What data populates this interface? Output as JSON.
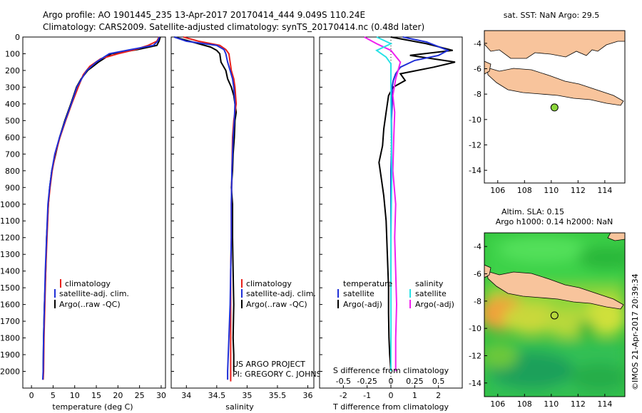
{
  "header": {
    "line1": "Argo profile: AO 1901445_235 13-Apr-2017 20170414_444 9.049S 110.24E",
    "line2": "Climatology: CARS2009. Satellite-adjusted climatology: synTS_20170414.nc (0.48d later)"
  },
  "colors": {
    "climatology": "#e8201a",
    "satellite_clim": "#1f2fd6",
    "argo": "#000000",
    "s_satellite": "#27e2e6",
    "s_argo": "#f020f0",
    "land": "#f8c49c",
    "marker": "#8cd63c"
  },
  "chart_data": [
    {
      "type": "line",
      "xlabel": "temperature (deg C)",
      "xlim": [
        -2,
        31
      ],
      "xticks": [
        "0",
        "5",
        "10",
        "15",
        "20",
        "25",
        "30"
      ],
      "ylim": [
        2100,
        0
      ],
      "yticks": [
        "0",
        "100",
        "200",
        "300",
        "400",
        "500",
        "600",
        "700",
        "800",
        "900",
        "1000",
        "1100",
        "1200",
        "1300",
        "1400",
        "1500",
        "1600",
        "1700",
        "1800",
        "1900",
        "2000"
      ],
      "legend": [
        "climatology",
        "satellite-adj. clim.",
        "Argo(..raw -QC)"
      ],
      "series": [
        {
          "name": "climatology",
          "x": [
            29.5,
            29.0,
            27.0,
            24.0,
            20.0,
            16.0,
            13.5,
            12.0,
            10.8,
            9.3,
            7.9,
            6.6,
            5.5,
            4.8,
            4.3,
            3.9,
            3.6,
            3.3,
            3.1,
            2.9,
            2.8,
            2.7
          ],
          "y": [
            0,
            25,
            50,
            75,
            100,
            130,
            175,
            225,
            300,
            400,
            500,
            600,
            700,
            800,
            900,
            1000,
            1200,
            1400,
            1600,
            1800,
            2000,
            2050
          ]
        },
        {
          "name": "satellite-adj. clim.",
          "x": [
            29.6,
            29.2,
            28.2,
            23.0,
            18.0,
            15.0,
            12.8,
            11.6,
            10.5,
            9.2,
            7.8,
            6.5,
            5.4,
            4.7,
            4.2,
            3.8,
            3.5,
            3.2,
            3.0,
            2.8,
            2.7,
            2.6
          ],
          "y": [
            0,
            25,
            50,
            75,
            100,
            150,
            200,
            250,
            300,
            400,
            500,
            600,
            700,
            800,
            900,
            1000,
            1200,
            1400,
            1600,
            1800,
            2000,
            2050
          ]
        },
        {
          "name": "Argo(..raw -QC)",
          "x": [
            29.8,
            29.5,
            29.0,
            24.5,
            18.5,
            15.5,
            13.0,
            11.5,
            10.4,
            9.1,
            7.7,
            6.5,
            5.6,
            4.7,
            4.2,
            3.9,
            3.5,
            3.3,
            3.0,
            2.8,
            2.7
          ],
          "y": [
            0,
            25,
            50,
            75,
            100,
            150,
            200,
            250,
            300,
            400,
            500,
            600,
            700,
            800,
            900,
            1000,
            1200,
            1400,
            1600,
            1800,
            2000
          ]
        }
      ]
    },
    {
      "type": "line",
      "xlabel": "salinity",
      "xlim": [
        33.75,
        36.1
      ],
      "xticks": [
        "34",
        "34.5",
        "35",
        "35.5",
        "36"
      ],
      "ylim": [
        2100,
        0
      ],
      "legend": [
        "climatology",
        "satellite-adj. clim.",
        "Argo(..raw -QC)"
      ],
      "annotations": [
        "US ARGO PROJECT",
        "PI: GREGORY C. JOHNSON"
      ],
      "series": [
        {
          "name": "climatology",
          "x": [
            33.95,
            34.2,
            34.55,
            34.65,
            34.7,
            34.72,
            34.74,
            34.78,
            34.8,
            34.82,
            34.8,
            34.78,
            34.76,
            34.75,
            34.74,
            34.74,
            34.73,
            34.73,
            34.73,
            34.73,
            34.73,
            34.73
          ],
          "y": [
            0,
            25,
            50,
            75,
            100,
            150,
            200,
            250,
            300,
            400,
            450,
            500,
            600,
            800,
            1000,
            1200,
            1400,
            1600,
            1800,
            2000,
            2050,
            2060
          ]
        },
        {
          "name": "satellite-adj. clim.",
          "x": [
            33.8,
            34.0,
            34.5,
            34.62,
            34.65,
            34.68,
            34.72,
            34.76,
            34.78,
            34.8,
            34.79,
            34.77,
            34.76,
            34.75,
            34.74,
            34.74,
            34.73,
            34.72,
            34.7,
            34.68,
            34.68
          ],
          "y": [
            0,
            25,
            50,
            75,
            100,
            150,
            200,
            250,
            300,
            400,
            500,
            600,
            700,
            800,
            1000,
            1200,
            1400,
            1600,
            1800,
            2000,
            2050
          ]
        },
        {
          "name": "Argo(..raw -QC)",
          "x": [
            33.8,
            34.1,
            34.4,
            34.5,
            34.55,
            34.57,
            34.65,
            34.68,
            34.74,
            34.78,
            34.82,
            34.8,
            34.79,
            34.77,
            34.76,
            34.74,
            34.76,
            34.76,
            34.77,
            34.78,
            34.77,
            34.78,
            34.78
          ],
          "y": [
            0,
            30,
            60,
            80,
            100,
            150,
            200,
            250,
            300,
            350,
            450,
            500,
            600,
            700,
            800,
            900,
            1000,
            1200,
            1400,
            1600,
            1800,
            1900,
            2000
          ]
        }
      ]
    },
    {
      "type": "line",
      "xlabel": "T difference from climatology",
      "xlabel2": "S difference from climatology",
      "xticks_t": [
        "-2",
        "-1",
        "0",
        "1",
        "2"
      ],
      "xticks_s": [
        "-0.5",
        "-0.25",
        "0",
        "0.25",
        "0.5"
      ],
      "xlim_t": [
        -3.0,
        3.0
      ],
      "ylim": [
        2100,
        0
      ],
      "legend_t_title": "temperature",
      "legend_s_title": "salinity",
      "legend": [
        "satellite",
        "Argo(-adj)",
        "satellite",
        "Argo(-adj)"
      ],
      "series": [
        {
          "name": "temperature satellite",
          "x": [
            0.5,
            1.5,
            2.4,
            2.0,
            1.0,
            0.4,
            0.2,
            0.1,
            0.05,
            0.05,
            0.02,
            0.03,
            0.02,
            0.0,
            0.0,
            0.0,
            0.0,
            0.0,
            0.0,
            0.0
          ],
          "y": [
            0,
            30,
            80,
            110,
            140,
            180,
            220,
            260,
            300,
            400,
            500,
            600,
            700,
            800,
            1000,
            1200,
            1400,
            1600,
            1800,
            2000
          ]
        },
        {
          "name": "temperature Argo(-adj)",
          "x": [
            0.0,
            1.5,
            2.6,
            0.8,
            2.7,
            1.8,
            0.4,
            0.6,
            0.1,
            -0.1,
            -0.2,
            -0.3,
            -0.35,
            -0.5,
            -0.4,
            -0.3,
            -0.2,
            -0.15,
            -0.1,
            -0.1,
            -0.08,
            -0.05,
            0.0
          ],
          "y": [
            0,
            40,
            80,
            110,
            150,
            180,
            220,
            260,
            300,
            350,
            450,
            550,
            650,
            750,
            850,
            950,
            1100,
            1300,
            1500,
            1650,
            1800,
            1900,
            2000
          ]
        },
        {
          "name": "salinity satellite",
          "x": [
            -0.15,
            0.0,
            -0.15,
            -0.05,
            0.0,
            0.0,
            0.0,
            0.01,
            0.0,
            0.0,
            0.0
          ],
          "y": [
            0,
            40,
            80,
            120,
            160,
            250,
            400,
            800,
            1200,
            1600,
            2000
          ]
        },
        {
          "name": "salinity Argo(-adj)",
          "x": [
            -0.28,
            -0.15,
            0.0,
            0.1,
            0.05,
            0.02,
            0.04,
            0.03,
            0.02,
            0.05,
            0.04,
            0.05,
            0.06,
            0.05,
            0.05
          ],
          "y": [
            0,
            40,
            80,
            150,
            250,
            350,
            450,
            600,
            800,
            1000,
            1200,
            1400,
            1600,
            1800,
            2000
          ]
        }
      ]
    },
    {
      "type": "scatter",
      "title": "sat. SST: NaN Argo: 29.5",
      "xticks": [
        "106",
        "108",
        "110",
        "112",
        "114"
      ],
      "yticks": [
        "-4",
        "-6",
        "-8",
        "-10",
        "-12",
        "-14"
      ],
      "xlim": [
        105,
        115.5
      ],
      "ylim": [
        -15,
        -3
      ],
      "points": [
        {
          "x": 110.24,
          "y": -9.05
        }
      ]
    },
    {
      "type": "heatmap",
      "title_line1": "Altim. SLA: 0.15",
      "title_line2": "Argo h1000: 0.14 h2000: NaN",
      "xticks": [
        "106",
        "108",
        "110",
        "112",
        "114"
      ],
      "yticks": [
        "-4",
        "-6",
        "-8",
        "-10",
        "-12",
        "-14"
      ],
      "xlim": [
        105,
        115.5
      ],
      "ylim": [
        -15,
        -3
      ],
      "points": [
        {
          "x": 110.24,
          "y": -9.05
        }
      ]
    }
  ],
  "footer": {
    "imos_stamp": "©IMOS 21-Apr-2017 20:39:34"
  }
}
